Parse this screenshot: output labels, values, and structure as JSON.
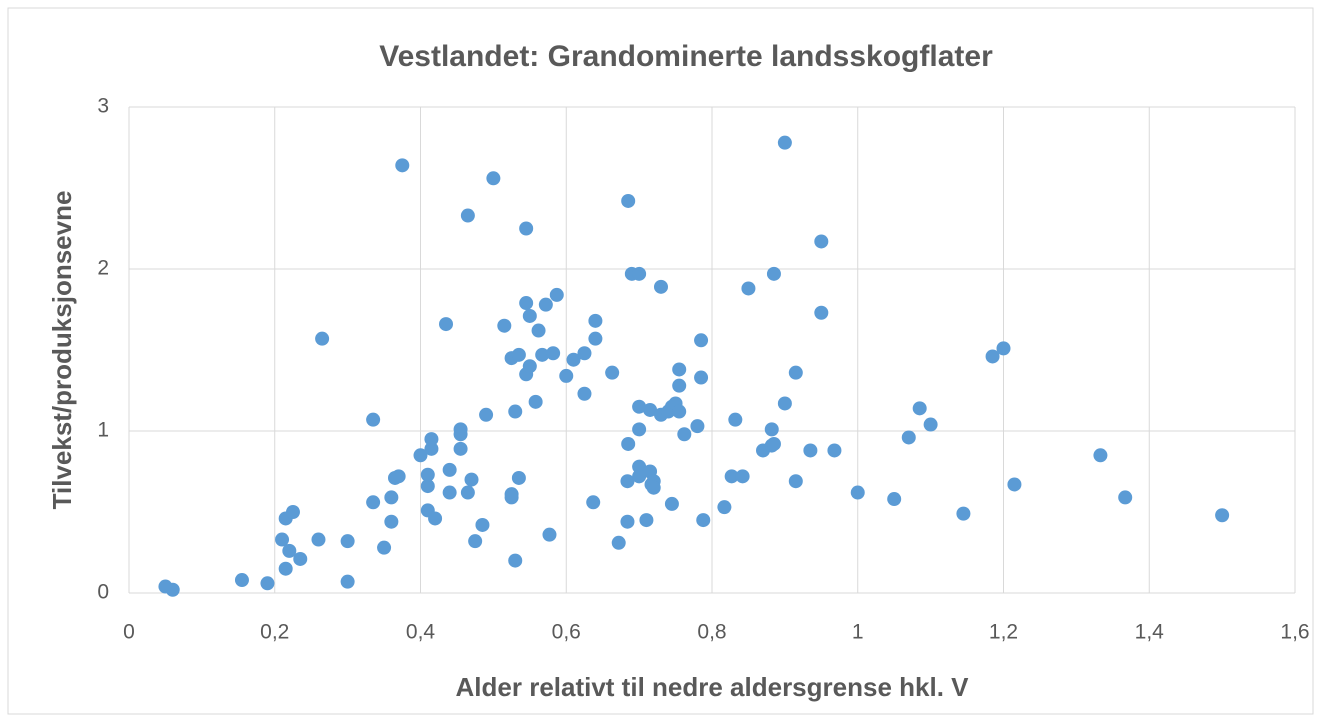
{
  "chart_data": {
    "type": "scatter",
    "title": "Vestlandet: Grandominerte landsskogflater",
    "xlabel": "Alder relativt til nedre aldersgrense hkl. V",
    "ylabel": "Tilvekst/produksjonsevne",
    "color": "#5b9bd5",
    "grid": true,
    "xlim": [
      0,
      1.6
    ],
    "xticks": [
      0,
      {
        "value": 0.2,
        "label": "0,2"
      },
      {
        "value": 0.4,
        "label": "0,4"
      },
      {
        "value": 0.6,
        "label": "0,6"
      },
      {
        "value": 0.8,
        "label": "0,8"
      },
      1,
      {
        "value": 1.2,
        "label": "1,2"
      },
      {
        "value": 1.4,
        "label": "1,4"
      },
      {
        "value": 1.6,
        "label": "1,6"
      }
    ],
    "ylim": [
      0,
      3
    ],
    "yticks": [
      0,
      1,
      2,
      3
    ],
    "x": [
      0.05,
      0.06,
      0.155,
      0.19,
      0.21,
      0.215,
      0.225,
      0.215,
      0.22,
      0.235,
      0.26,
      0.265,
      0.3,
      0.3,
      0.335,
      0.335,
      0.375,
      0.35,
      0.36,
      0.36,
      0.365,
      0.37,
      0.4,
      0.41,
      0.41,
      0.41,
      0.415,
      0.415,
      0.42,
      0.435,
      0.44,
      0.44,
      0.455,
      0.455,
      0.455,
      0.465,
      0.465,
      0.47,
      0.475,
      0.49,
      0.485,
      0.5,
      0.515,
      0.525,
      0.525,
      0.525,
      0.53,
      0.53,
      0.535,
      0.535,
      0.545,
      0.545,
      0.545,
      0.55,
      0.55,
      0.558,
      0.562,
      0.567,
      0.572,
      0.577,
      0.582,
      0.587,
      0.6,
      0.61,
      0.625,
      0.625,
      0.637,
      0.64,
      0.64,
      0.663,
      0.672,
      0.685,
      0.685,
      0.684,
      0.684,
      0.69,
      0.7,
      0.7,
      0.7,
      0.7,
      0.7,
      0.71,
      0.715,
      0.715,
      0.717,
      0.72,
      0.72,
      0.73,
      0.73,
      0.74,
      0.745,
      0.745,
      0.75,
      0.755,
      0.755,
      0.755,
      0.762,
      0.78,
      0.785,
      0.785,
      0.788,
      0.817,
      0.827,
      0.832,
      0.842,
      0.85,
      0.87,
      0.882,
      0.882,
      0.885,
      0.885,
      0.9,
      0.9,
      0.915,
      0.915,
      0.935,
      0.95,
      0.95,
      0.968,
      1.0,
      1.05,
      1.07,
      1.085,
      1.1,
      1.145,
      1.185,
      1.2,
      1.215,
      1.333,
      1.367,
      1.5
    ],
    "values": [
      0.04,
      0.02,
      0.08,
      0.06,
      0.33,
      0.46,
      0.5,
      0.15,
      0.26,
      0.21,
      0.33,
      1.57,
      0.32,
      0.07,
      1.07,
      0.56,
      2.64,
      0.28,
      0.44,
      0.59,
      0.71,
      0.72,
      0.85,
      0.51,
      0.66,
      0.73,
      0.89,
      0.95,
      0.46,
      1.66,
      0.76,
      0.62,
      0.89,
      1.01,
      0.98,
      2.33,
      0.62,
      0.7,
      0.32,
      1.1,
      0.42,
      2.56,
      1.65,
      0.61,
      0.59,
      1.45,
      1.12,
      0.2,
      1.47,
      0.71,
      2.25,
      1.79,
      1.35,
      1.4,
      1.71,
      1.18,
      1.62,
      1.47,
      1.78,
      0.36,
      1.48,
      1.84,
      1.34,
      1.44,
      1.48,
      1.23,
      0.56,
      1.57,
      1.68,
      1.36,
      0.31,
      2.42,
      0.92,
      0.69,
      0.44,
      1.97,
      1.97,
      1.15,
      1.01,
      0.78,
      0.72,
      0.45,
      1.13,
      0.75,
      0.67,
      0.69,
      0.65,
      1.89,
      1.1,
      1.12,
      0.55,
      1.15,
      1.17,
      1.38,
      1.28,
      1.12,
      0.98,
      1.03,
      1.56,
      1.33,
      0.45,
      0.53,
      0.72,
      1.07,
      0.72,
      1.88,
      0.88,
      0.91,
      1.01,
      0.92,
      1.97,
      1.17,
      2.78,
      0.69,
      1.36,
      0.88,
      2.17,
      1.73,
      0.88,
      0.62,
      0.58,
      0.96,
      1.14,
      1.04,
      0.49,
      1.46,
      1.51,
      0.67,
      0.85,
      0.59,
      0.48
    ]
  }
}
